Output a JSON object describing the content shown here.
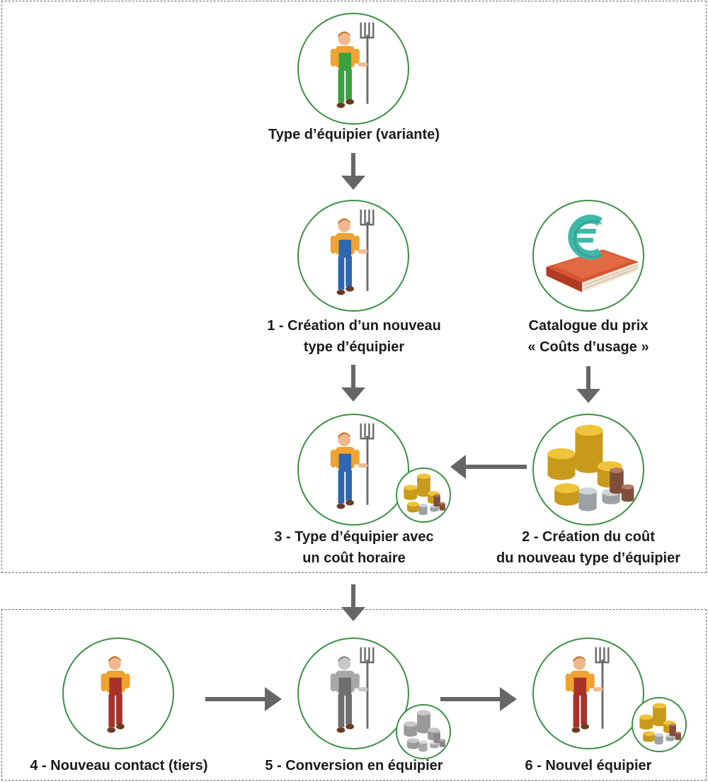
{
  "nodes": {
    "variant": {
      "label": [
        "Type d’équipier (variante)"
      ],
      "icon": "farmer-green-icon"
    },
    "step1": {
      "label": [
        "1 - Création d’un nouveau",
        "type d’équipier"
      ],
      "icon": "farmer-blue-icon"
    },
    "catalog": {
      "label": [
        "Catalogue du prix",
        "« Coûts d’usage »"
      ],
      "icon": "euro-book-icon"
    },
    "step2": {
      "label": [
        "2 - Création du coût",
        "du nouveau type d’équipier"
      ],
      "icon": "coins-stack-icon"
    },
    "step3": {
      "label": [
        "3 - Type d’équipier avec",
        "un coût horaire"
      ],
      "icon": "farmer-blue-with-coins-icon"
    },
    "step4": {
      "label": [
        "4 - Nouveau contact (tiers)"
      ],
      "icon": "farmer-red-icon"
    },
    "step5": {
      "label": [
        "5 - Conversion en équipier"
      ],
      "icon": "farmer-grey-with-coins-icon"
    },
    "step6": {
      "label": [
        "6 - Nouvel équipier"
      ],
      "icon": "farmer-red-with-coins-icon"
    }
  },
  "colors": {
    "circle_border": "#3e8e47",
    "arrow": "#666666",
    "frame": "#6b6b6b",
    "euro": "#3fb8a8",
    "book": "#c9452a",
    "coin_gold": "#f0c43a",
    "coin_silver": "#c8cccf",
    "coin_copper": "#a86b55"
  }
}
